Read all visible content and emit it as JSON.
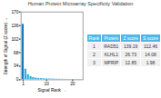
{
  "chart_data": {
    "type": "bar",
    "title": "Human Protein Microarray Specificity Validation",
    "xlabel": "Signal Rank",
    "ylabel": "Strength of Signal (Z score)",
    "x": [
      1,
      2,
      3,
      4,
      5,
      6,
      7,
      8,
      9,
      10,
      11,
      12,
      13,
      14,
      15,
      16,
      17,
      18,
      19,
      20,
      21,
      22,
      23
    ],
    "values": [
      139.19,
      26.73,
      12.85,
      8.0,
      5.5,
      4.2,
      3.5,
      3.0,
      2.6,
      2.3,
      2.1,
      1.9,
      1.7,
      1.5,
      1.4,
      1.3,
      1.2,
      1.1,
      1.05,
      1.0,
      0.95,
      0.9,
      0.85
    ],
    "colors": [
      "#1a7ab5",
      "#29abe2",
      "#29abe2",
      "#29abe2",
      "#29abe2",
      "#29abe2",
      "#29abe2",
      "#29abe2",
      "#29abe2",
      "#29abe2",
      "#29abe2",
      "#29abe2",
      "#29abe2",
      "#29abe2",
      "#29abe2",
      "#29abe2",
      "#29abe2",
      "#29abe2",
      "#29abe2",
      "#29abe2",
      "#29abe2",
      "#29abe2",
      "#29abe2"
    ],
    "xlim": [
      0.2,
      24
    ],
    "xticks": [
      1,
      10,
      20
    ],
    "ylim": [
      0,
      170
    ],
    "yticks": [
      0,
      34,
      68,
      102,
      136,
      170
    ],
    "grid": false,
    "table": {
      "columns": [
        "Rank",
        "Protein",
        "Z score",
        "S score"
      ],
      "rows": [
        [
          "1",
          "RAD51",
          "139.19",
          "112.46"
        ],
        [
          "2",
          "KLHL1",
          "26.73",
          "14.08"
        ],
        [
          "3",
          "MPRIP",
          "12.85",
          "1.98"
        ]
      ],
      "color": "#4db8e8"
    }
  }
}
